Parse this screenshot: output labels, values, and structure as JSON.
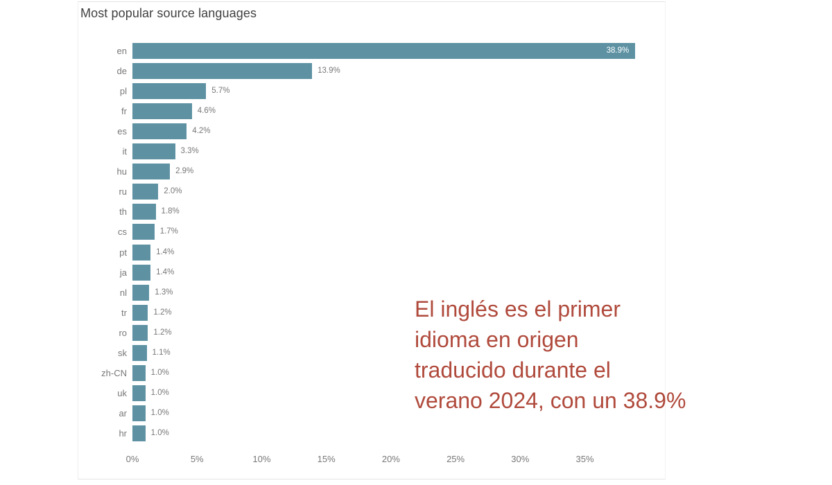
{
  "colors": {
    "bar": "#5e92a3",
    "axis_label": "#777777",
    "title": "#404040",
    "annotation_text": "#b04a3c",
    "inside_value_label": "#ffffff",
    "visual_border": "#e3e3e3",
    "background": "#ffffff"
  },
  "chart_data": {
    "type": "bar",
    "orientation": "horizontal",
    "title": "Most popular source languages",
    "categories": [
      "en",
      "de",
      "pl",
      "fr",
      "es",
      "it",
      "hu",
      "ru",
      "th",
      "cs",
      "pt",
      "ja",
      "nl",
      "tr",
      "ro",
      "sk",
      "zh-CN",
      "uk",
      "ar",
      "hr"
    ],
    "values": [
      38.9,
      13.9,
      5.7,
      4.6,
      4.2,
      3.3,
      2.9,
      2.0,
      1.8,
      1.7,
      1.4,
      1.4,
      1.3,
      1.2,
      1.2,
      1.1,
      1.0,
      1.0,
      1.0,
      1.0
    ],
    "value_labels": [
      "38.9%",
      "13.9%",
      "5.7%",
      "4.6%",
      "4.2%",
      "3.3%",
      "2.9%",
      "2.0%",
      "1.8%",
      "1.7%",
      "1.4%",
      "1.4%",
      "1.3%",
      "1.2%",
      "1.2%",
      "1.1%",
      "1.0%",
      "1.0%",
      "1.0%",
      "1.0%"
    ],
    "x_ticks": [
      {
        "value": 0,
        "label": "0%"
      },
      {
        "value": 5,
        "label": "5%"
      },
      {
        "value": 10,
        "label": "10%"
      },
      {
        "value": 15,
        "label": "15%"
      },
      {
        "value": 20,
        "label": "20%"
      },
      {
        "value": 25,
        "label": "25%"
      },
      {
        "value": 30,
        "label": "30%"
      },
      {
        "value": 35,
        "label": "35%"
      },
      {
        "value": 40,
        "label": ""
      }
    ],
    "xlim": [
      0,
      41.3
    ],
    "xlabel": "",
    "ylabel": "",
    "grid": false,
    "legend": false
  },
  "annotation": {
    "lines": [
      "El inglés es el primer",
      "idioma en origen",
      "traducido durante el",
      "verano 2024, con un 38.9%"
    ]
  }
}
